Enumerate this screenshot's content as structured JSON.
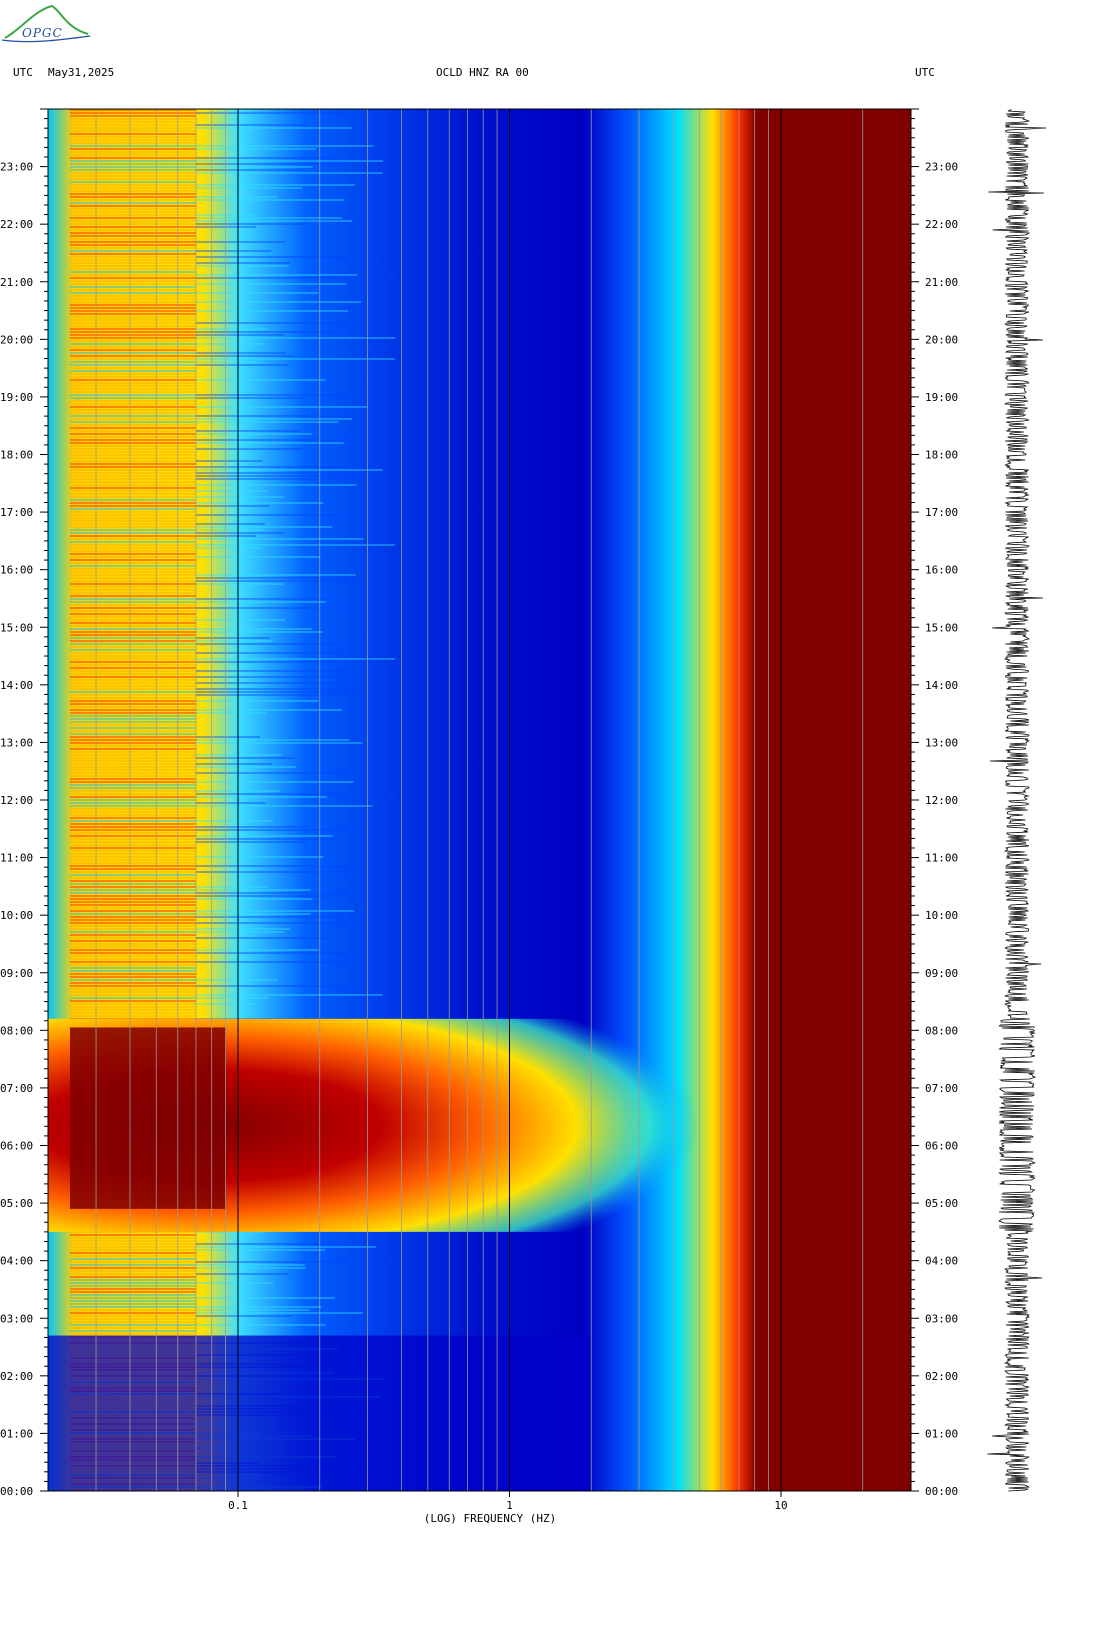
{
  "header": {
    "left_tz": "UTC",
    "date": "May31,2025",
    "station": "OCLD HNZ RA 00",
    "right_tz": "UTC"
  },
  "logo": {
    "text": "OPGC",
    "color": "#1f4fa8"
  },
  "chart_data": {
    "type": "heatmap",
    "title": "OCLD HNZ RA 00",
    "subtitle": "May31,2025",
    "xlabel": "(LOG) FREQUENCY (HZ)",
    "ylabel": "UTC",
    "x_scale": "log",
    "x_ticks": [
      0.1,
      1,
      10
    ],
    "x_tick_labels": [
      "0.1",
      "1",
      "10"
    ],
    "xlim_hz": [
      0.024,
      27
    ],
    "y_ticks": [
      "00:00",
      "01:00",
      "02:00",
      "03:00",
      "04:00",
      "05:00",
      "06:00",
      "07:00",
      "08:00",
      "09:00",
      "10:00",
      "11:00",
      "12:00",
      "13:00",
      "14:00",
      "15:00",
      "16:00",
      "17:00",
      "18:00",
      "19:00",
      "20:00",
      "21:00",
      "22:00",
      "23:00"
    ],
    "ylim_hours": [
      0,
      24
    ],
    "colormap": [
      "#00007f",
      "#0000ff",
      "#007fff",
      "#00ffff",
      "#7fff7f",
      "#ffff00",
      "#ff7f00",
      "#ff0000",
      "#7f0000"
    ],
    "description_bands": [
      {
        "name": "microseism",
        "freq_hz": [
          0.024,
          0.09
        ],
        "level": "high"
      },
      {
        "name": "event",
        "hours": [
          4.5,
          8.2
        ],
        "freq_hz": [
          0.024,
          3
        ],
        "level": "very high"
      },
      {
        "name": "cultural-noise",
        "freq_hz": [
          5,
          27
        ],
        "level": "saturated"
      }
    ],
    "seismogram": {
      "type": "trace",
      "color": "#000000"
    }
  }
}
